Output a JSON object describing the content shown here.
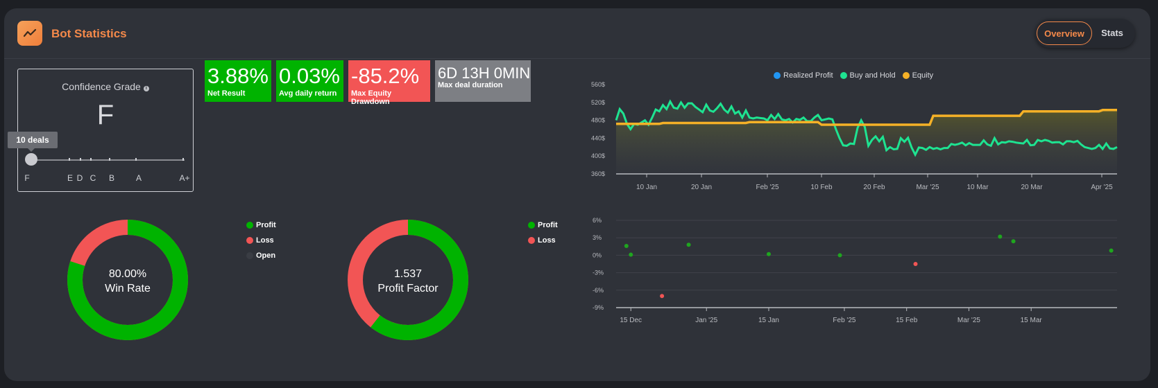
{
  "header": {
    "title": "Bot Statistics",
    "tabs": [
      {
        "label": "Overview",
        "active": true
      },
      {
        "label": "Stats",
        "active": false
      }
    ],
    "accent": "#f4894a"
  },
  "grade": {
    "title": "Confidence Grade",
    "info_icon": "info-icon",
    "value": "F",
    "deals": "10 deals",
    "scale": [
      "F",
      "E",
      "D",
      "C",
      "B",
      "A",
      "A+"
    ]
  },
  "cards": [
    {
      "value": "3.88%",
      "label": "Net Result",
      "color": "#00b300"
    },
    {
      "value": "0.03%",
      "label": "Avg daily return",
      "color": "#00b300"
    },
    {
      "value": "-85.2%",
      "label": "Max Equity Drawdown",
      "color": "#f25555"
    },
    {
      "value": "6D 13H 0MIN",
      "label": "Max deal duration",
      "color": "#7d7f84"
    }
  ],
  "winrate": {
    "center_value": "80.00%",
    "center_label": "Win Rate",
    "legend": [
      {
        "label": "Profit",
        "color": "#00b300"
      },
      {
        "label": "Loss",
        "color": "#f25555"
      },
      {
        "label": "Open",
        "color": "#3a3d44"
      }
    ],
    "profit_fraction": 0.8
  },
  "profitfactor": {
    "center_value": "1.537",
    "center_label": "Profit Factor",
    "legend": [
      {
        "label": "Profit",
        "color": "#00b300"
      },
      {
        "label": "Loss",
        "color": "#f25555"
      }
    ],
    "profit_fraction": 0.606
  },
  "chart_data": [
    {
      "type": "line",
      "legend": [
        "Realized Profit",
        "Buy and Hold",
        "Equity"
      ],
      "colors": {
        "Realized Profit": "#2196f3",
        "Buy and Hold": "#1ee391",
        "Equity": "#f5b127"
      },
      "y_ticks": [
        "560$",
        "520$",
        "480$",
        "440$",
        "400$",
        "360$"
      ],
      "ylim": [
        360,
        560
      ],
      "x_ticks": [
        "10 Jan",
        "20 Jan",
        "Feb '25",
        "10 Feb",
        "20 Feb",
        "Mar '25",
        "10 Mar",
        "20 Mar",
        "Apr '25"
      ],
      "series": [
        {
          "name": "Buy and Hold",
          "values": [
            480,
            505,
            495,
            472,
            460,
            472,
            470,
            475,
            480,
            470,
            486,
            504,
            500,
            514,
            505,
            522,
            508,
            506,
            520,
            508,
            518,
            518,
            510,
            504,
            498,
            515,
            502,
            499,
            507,
            517,
            504,
            497,
            511,
            495,
            500,
            486,
            502,
            486,
            484,
            486,
            485,
            484,
            480,
            492,
            483,
            494,
            482,
            480,
            483,
            475,
            483,
            481,
            486,
            478,
            478,
            486,
            492,
            480,
            482,
            484,
            482,
            460,
            440,
            424,
            423,
            428,
            427,
            463,
            480,
            465,
            423,
            436,
            444,
            433,
            443,
            413,
            420,
            415,
            416,
            440,
            432,
            441,
            419,
            403,
            419,
            418,
            414,
            420,
            416,
            418,
            415,
            418,
            418,
            427,
            425,
            427,
            430,
            424,
            429,
            425,
            425,
            425,
            435,
            426,
            423,
            440,
            426,
            431,
            430,
            433,
            432,
            430,
            429,
            428,
            436,
            424,
            425,
            436,
            433,
            436,
            434,
            430,
            431,
            431,
            426,
            433,
            433,
            431,
            434,
            426,
            420,
            418,
            416,
            418,
            425,
            416,
            428,
            417,
            416,
            420
          ]
        },
        {
          "name": "Equity",
          "values": [
            472,
            472,
            472,
            472,
            472,
            472,
            472,
            472,
            472,
            472,
            472,
            472,
            472,
            474,
            474,
            474,
            474,
            474,
            474,
            474,
            474,
            474,
            474,
            474,
            474,
            474,
            474,
            474,
            474,
            474,
            474,
            474,
            474,
            474,
            474,
            474,
            474,
            476,
            476,
            476,
            476,
            476,
            476,
            476,
            476,
            476,
            476,
            476,
            476,
            476,
            476,
            476,
            476,
            476,
            476,
            476,
            476,
            470,
            470,
            470,
            470,
            470,
            470,
            470,
            470,
            470,
            470,
            470,
            470,
            470,
            470,
            470,
            470,
            470,
            470,
            470,
            470,
            470,
            470,
            470,
            470,
            470,
            470,
            470,
            470,
            470,
            470,
            470,
            490,
            490,
            490,
            490,
            490,
            490,
            490,
            490,
            490,
            490,
            490,
            490,
            490,
            490,
            490,
            490,
            490,
            490,
            490,
            490,
            490,
            490,
            490,
            490,
            490,
            500,
            500,
            500,
            500,
            500,
            500,
            500,
            500,
            500,
            500,
            500,
            500,
            500,
            500,
            500,
            500,
            500,
            500,
            500,
            500,
            500,
            500,
            503,
            503,
            503,
            503,
            503
          ]
        }
      ]
    },
    {
      "type": "scatter",
      "y_ticks": [
        "6%",
        "3%",
        "0%",
        "-3%",
        "-6%",
        "-9%"
      ],
      "ylim": [
        -9,
        6
      ],
      "x_ticks": [
        "15 Dec",
        "Jan '25",
        "15 Jan",
        "Feb '25",
        "15 Feb",
        "Mar '25",
        "15 Mar"
      ],
      "points": [
        {
          "x": "2024-12-14",
          "y": 1.6,
          "result": "profit"
        },
        {
          "x": "2024-12-15",
          "y": 0.1,
          "result": "profit"
        },
        {
          "x": "2024-12-22",
          "y": -7.0,
          "result": "loss"
        },
        {
          "x": "2024-12-28",
          "y": 1.8,
          "result": "profit"
        },
        {
          "x": "2025-01-15",
          "y": 0.2,
          "result": "profit"
        },
        {
          "x": "2025-01-31",
          "y": 0.0,
          "result": "profit"
        },
        {
          "x": "2025-02-17",
          "y": -1.5,
          "result": "loss"
        },
        {
          "x": "2025-03-08",
          "y": 3.2,
          "result": "profit"
        },
        {
          "x": "2025-03-11",
          "y": 2.4,
          "result": "profit"
        },
        {
          "x": "2025-04-02",
          "y": 0.8,
          "result": "profit"
        }
      ]
    }
  ]
}
